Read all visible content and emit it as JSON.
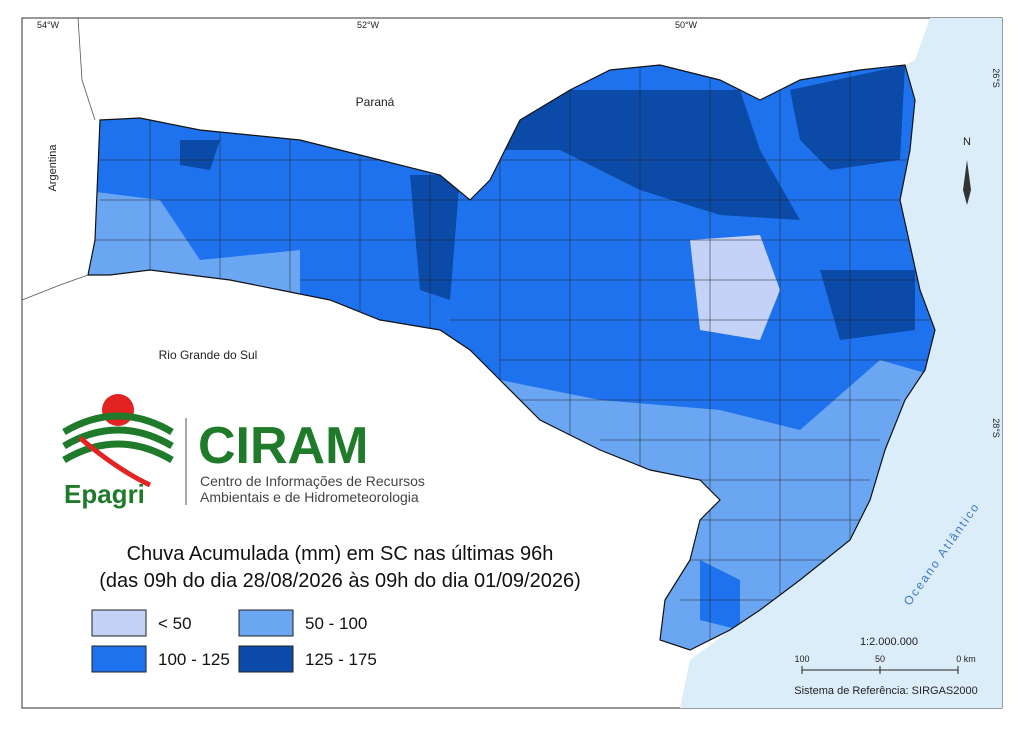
{
  "map": {
    "longitudes": [
      "54°W",
      "52°W",
      "50°W"
    ],
    "latitudes": [
      "26°S",
      "28°S"
    ],
    "places": {
      "parana": "Paraná",
      "argentina": "Argentina",
      "rio_grande_do_sul": "Rio Grande do Sul",
      "ocean": "Oceano Atlântico"
    },
    "north": "N"
  },
  "logo": {
    "brand": "Epagri",
    "name": "CIRAM",
    "line1": "Centro de Informações de Recursos",
    "line2": "Ambientais e de Hidrometeorologia"
  },
  "legend": {
    "title": [
      "Chuva Acumulada (mm) em SC nas últimas 96h",
      "(das 09h do dia 28/08/2026 às 09h do dia 01/09/2026)"
    ],
    "items": [
      {
        "label": "< 50",
        "color": "#c3d2f6"
      },
      {
        "label": "100 - 125",
        "color": "#1f72ee"
      },
      {
        "label": "50 - 100",
        "color": "#6aa6f2"
      },
      {
        "label": "125 - 175",
        "color": "#0b4aa6"
      }
    ]
  },
  "scale": {
    "ratio": "1:2.000.000",
    "ticks": [
      "100",
      "50",
      "0 km"
    ]
  },
  "reference": "Sistema de Referência: SIRGAS2000"
}
